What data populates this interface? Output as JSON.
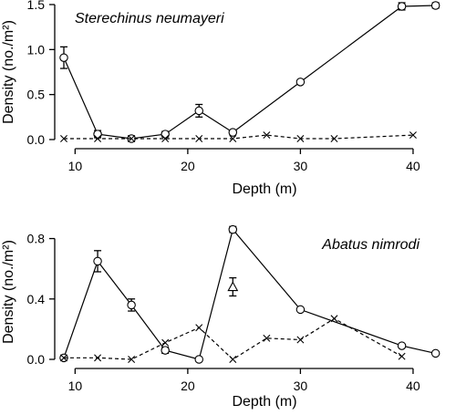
{
  "chart_data": [
    {
      "type": "line",
      "title": "Sterechinus neumayeri",
      "xlabel": "Depth (m)",
      "ylabel": "Density (no./m²)",
      "xlim": [
        9,
        43
      ],
      "ylim": [
        0,
        1.5
      ],
      "xticks": [
        10,
        20,
        30,
        40
      ],
      "yticks": [
        0.0,
        0.5,
        1.0,
        1.5
      ],
      "ytick_labels": [
        "0.0",
        "0.5",
        "1.0",
        "1.5"
      ],
      "series": [
        {
          "marker": "circle",
          "line": "solid",
          "points": [
            {
              "x": 9,
              "y": 0.91,
              "err": 0.12
            },
            {
              "x": 12,
              "y": 0.06,
              "err": 0.04
            },
            {
              "x": 15,
              "y": 0.01,
              "err": 0.03
            },
            {
              "x": 18,
              "y": 0.06,
              "err": 0.03
            },
            {
              "x": 21,
              "y": 0.32,
              "err": 0.07
            },
            {
              "x": 24,
              "y": 0.08,
              "err": 0.02
            },
            {
              "x": 30,
              "y": 0.64,
              "err": 0.02
            },
            {
              "x": 39,
              "y": 1.48,
              "err": 0.04
            },
            {
              "x": 42,
              "y": 1.49,
              "err": 0.03
            }
          ]
        },
        {
          "marker": "cross",
          "line": "dashed",
          "points": [
            {
              "x": 9,
              "y": 0.01
            },
            {
              "x": 12,
              "y": 0.01
            },
            {
              "x": 15,
              "y": 0.01
            },
            {
              "x": 18,
              "y": 0.01
            },
            {
              "x": 21,
              "y": 0.01
            },
            {
              "x": 24,
              "y": 0.01
            },
            {
              "x": 27,
              "y": 0.05
            },
            {
              "x": 30,
              "y": 0.01
            },
            {
              "x": 33,
              "y": 0.01
            },
            {
              "x": 40,
              "y": 0.05
            }
          ]
        }
      ]
    },
    {
      "type": "line",
      "title": "Abatus nimrodi",
      "xlabel": "Depth (m)",
      "ylabel": "Density (no./m²)",
      "xlim": [
        9,
        43
      ],
      "ylim": [
        0,
        0.9
      ],
      "xticks": [
        10,
        20,
        30,
        40
      ],
      "yticks": [
        0.0,
        0.4,
        0.8
      ],
      "ytick_labels": [
        "0.0",
        "0.4",
        "0.8"
      ],
      "series": [
        {
          "marker": "circle",
          "line": "solid",
          "points": [
            {
              "x": 9,
              "y": 0.01,
              "err": 0
            },
            {
              "x": 12,
              "y": 0.65,
              "err": 0.07
            },
            {
              "x": 15,
              "y": 0.36,
              "err": 0.04
            },
            {
              "x": 18,
              "y": 0.06,
              "err": 0.02
            },
            {
              "x": 21,
              "y": 0.0,
              "err": 0
            },
            {
              "x": 24,
              "y": 0.86,
              "err": 0.02
            },
            {
              "x": 30,
              "y": 0.33,
              "err": 0.01
            },
            {
              "x": 39,
              "y": 0.09,
              "err": 0.01
            },
            {
              "x": 42,
              "y": 0.04,
              "err": 0
            }
          ]
        },
        {
          "marker": "cross",
          "line": "dashed",
          "points": [
            {
              "x": 9,
              "y": 0.01
            },
            {
              "x": 12,
              "y": 0.01
            },
            {
              "x": 15,
              "y": 0.0
            },
            {
              "x": 18,
              "y": 0.11
            },
            {
              "x": 21,
              "y": 0.21
            },
            {
              "x": 24,
              "y": 0.0
            },
            {
              "x": 27,
              "y": 0.14
            },
            {
              "x": 30,
              "y": 0.13
            },
            {
              "x": 33,
              "y": 0.27
            },
            {
              "x": 39,
              "y": 0.02
            }
          ]
        },
        {
          "marker": "triangle",
          "line": "none",
          "points": [
            {
              "x": 24,
              "y": 0.48,
              "err": 0.06
            }
          ]
        }
      ]
    }
  ]
}
